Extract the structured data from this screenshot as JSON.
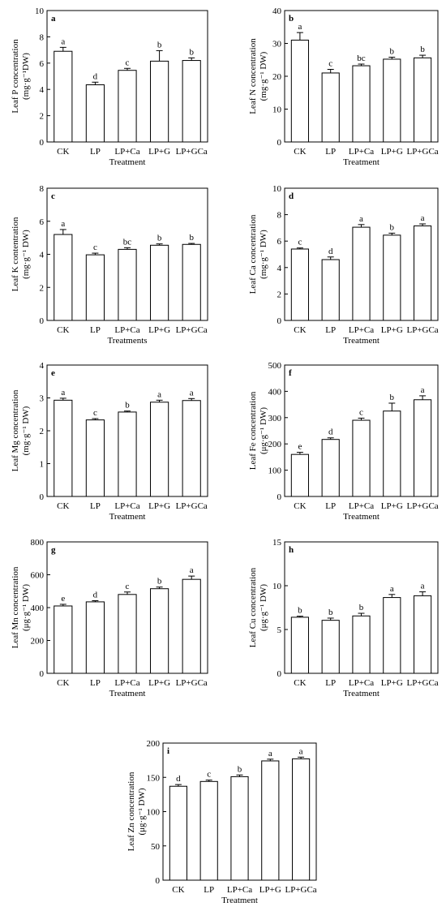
{
  "chart_data": [
    {
      "type": "bar",
      "panel_letter": "a",
      "ylabel_line1": "Leaf  P concentration",
      "ylabel_line2": "(mg·g⁻¹DW)",
      "xlabel": "Treatment",
      "categories": [
        "CK",
        "LP",
        "LP+Ca",
        "LP+G",
        "LP+GCa"
      ],
      "values": [
        6.9,
        4.35,
        5.45,
        6.15,
        6.2
      ],
      "errors": [
        0.3,
        0.2,
        0.15,
        0.8,
        0.2
      ],
      "letters": [
        "a",
        "d",
        "c",
        "b",
        "b"
      ],
      "ylim": [
        0,
        10
      ],
      "yticks": [
        0,
        2,
        4,
        6,
        8,
        10
      ]
    },
    {
      "type": "bar",
      "panel_letter": "b",
      "ylabel_line1": "Leaf N concentration",
      "ylabel_line2": "(mg·g⁻¹ DW)",
      "xlabel": "Treatment",
      "categories": [
        "CK",
        "LP",
        "LP+Ca",
        "LP+G",
        "LP+GCa"
      ],
      "values": [
        31,
        21,
        23.2,
        25.2,
        25.6
      ],
      "errors": [
        2.3,
        1.1,
        0.5,
        0.6,
        0.8
      ],
      "letters": [
        "a",
        "c",
        "bc",
        "b",
        "b"
      ],
      "ylim": [
        0,
        40
      ],
      "yticks": [
        0,
        10,
        20,
        30,
        40
      ]
    },
    {
      "type": "bar",
      "panel_letter": "c",
      "ylabel_line1": "Leaf  K contentration",
      "ylabel_line2": "(mg·g⁻¹ DW)",
      "xlabel": "Treatments",
      "categories": [
        "CK",
        "LP",
        "LP+Ca",
        "LP+G",
        "LP+GCa"
      ],
      "values": [
        5.2,
        3.97,
        4.3,
        4.55,
        4.6
      ],
      "errors": [
        0.3,
        0.1,
        0.1,
        0.08,
        0.06
      ],
      "letters": [
        "a",
        "c",
        "bc",
        "b",
        "b"
      ],
      "ylim": [
        0,
        8
      ],
      "yticks": [
        0,
        2,
        4,
        6,
        8
      ]
    },
    {
      "type": "bar",
      "panel_letter": "d",
      "ylabel_line1": "Leaf Ca concentration",
      "ylabel_line2": "(mg·g⁻¹ DW)",
      "xlabel": "Treatment",
      "categories": [
        "CK",
        "LP",
        "LP+Ca",
        "LP+G",
        "LP+GCa"
      ],
      "values": [
        5.4,
        4.6,
        7.05,
        6.45,
        7.15
      ],
      "errors": [
        0.08,
        0.2,
        0.2,
        0.15,
        0.15
      ],
      "letters": [
        "c",
        "d",
        "a",
        "b",
        "a"
      ],
      "ylim": [
        0,
        10
      ],
      "yticks": [
        0,
        2,
        4,
        6,
        8,
        10
      ]
    },
    {
      "type": "bar",
      "panel_letter": "e",
      "ylabel_line1": "Leaf Mg concentration",
      "ylabel_line2": "(mg·g⁻¹ DW)",
      "xlabel": "Treatment",
      "categories": [
        "CK",
        "LP",
        "LP+Ca",
        "LP+G",
        "LP+GCa"
      ],
      "values": [
        2.93,
        2.33,
        2.57,
        2.87,
        2.92
      ],
      "errors": [
        0.06,
        0.04,
        0.03,
        0.06,
        0.06
      ],
      "letters": [
        "a",
        "c",
        "b",
        "a",
        "a"
      ],
      "ylim": [
        0,
        4
      ],
      "yticks": [
        0,
        1,
        2,
        3,
        4
      ]
    },
    {
      "type": "bar",
      "panel_letter": "f",
      "ylabel_line1": "Leaf Fe concentration",
      "ylabel_line2": "(μg·g⁻¹ DW)",
      "xlabel": "Treatment",
      "categories": [
        "CK",
        "LP",
        "LP+Ca",
        "LP+G",
        "LP+GCa"
      ],
      "values": [
        160,
        217,
        290,
        325,
        368
      ],
      "errors": [
        8,
        6,
        8,
        30,
        15
      ],
      "letters": [
        "e",
        "d",
        "c",
        "b",
        "a"
      ],
      "ylim": [
        0,
        500
      ],
      "yticks": [
        0,
        100,
        200,
        300,
        400,
        500
      ]
    },
    {
      "type": "bar",
      "panel_letter": "g",
      "ylabel_line1": "Leaf Mn concentration",
      "ylabel_line2": "(μg·g⁻¹ DW)",
      "xlabel": "Treatment",
      "categories": [
        "CK",
        "LP",
        "LP+Ca",
        "LP+G",
        "LP+GCa"
      ],
      "values": [
        410,
        435,
        480,
        515,
        572
      ],
      "errors": [
        10,
        7,
        15,
        10,
        20
      ],
      "letters": [
        "e",
        "d",
        "c",
        "b",
        "a"
      ],
      "ylim": [
        0,
        800
      ],
      "yticks": [
        0,
        200,
        400,
        600,
        800
      ]
    },
    {
      "type": "bar",
      "panel_letter": "h",
      "ylabel_line1": "Leaf Cu concentration",
      "ylabel_line2": "(μg·g⁻¹ DW)",
      "xlabel": "Treatment",
      "categories": [
        "CK",
        "LP",
        "LP+Ca",
        "LP+G",
        "LP+GCa"
      ],
      "values": [
        6.4,
        6.05,
        6.55,
        8.65,
        8.85
      ],
      "errors": [
        0.12,
        0.25,
        0.3,
        0.35,
        0.45
      ],
      "letters": [
        "b",
        "b",
        "b",
        "a",
        "a"
      ],
      "ylim": [
        0,
        15
      ],
      "yticks": [
        0,
        5,
        10,
        15
      ]
    },
    {
      "type": "bar",
      "panel_letter": "i",
      "ylabel_line1": "Leaf Zn concentration",
      "ylabel_line2": "(μg·g⁻¹ DW)",
      "xlabel": "Treatment",
      "categories": [
        "CK",
        "LP",
        "LP+Ca",
        "LP+G",
        "LP+GCa"
      ],
      "values": [
        137,
        144,
        151,
        174,
        177
      ],
      "errors": [
        2.5,
        2,
        2.5,
        2.5,
        2.5
      ],
      "letters": [
        "d",
        "c",
        "b",
        "a",
        "a"
      ],
      "ylim": [
        0,
        200
      ],
      "yticks": [
        0,
        50,
        100,
        150,
        200
      ]
    }
  ]
}
